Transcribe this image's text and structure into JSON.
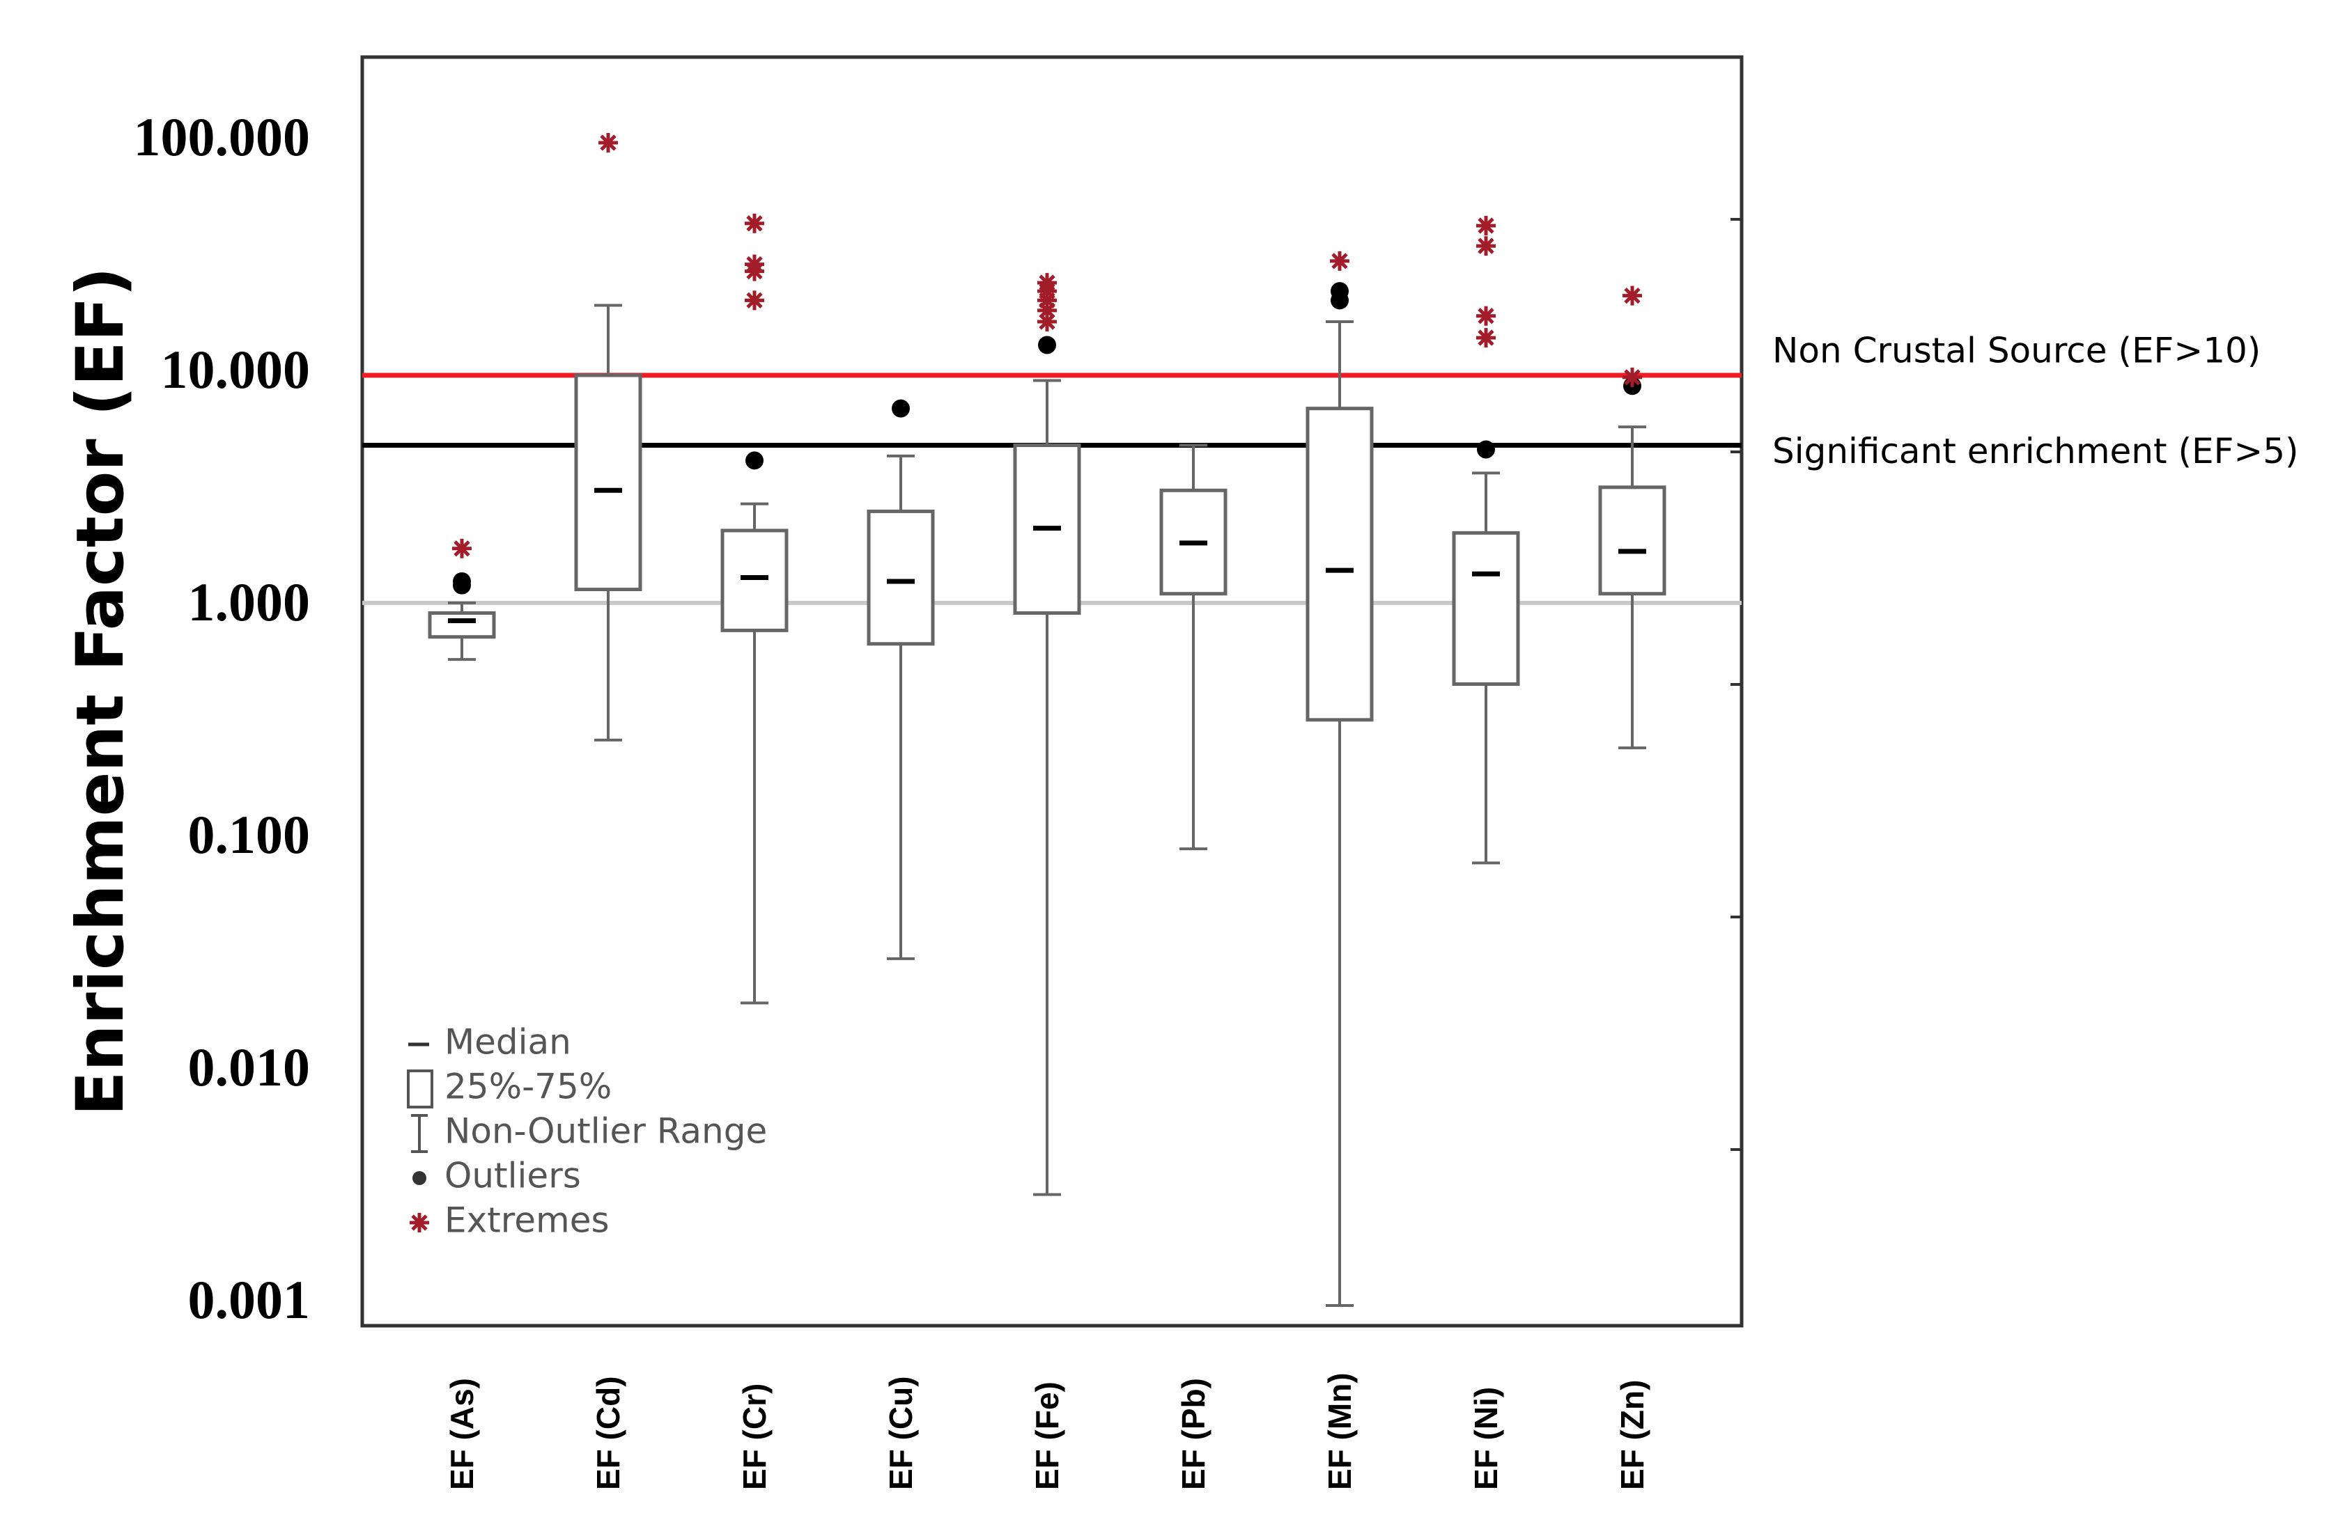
{
  "chart_data": {
    "type": "box",
    "ylabel": "Enrichment Factor (EF)",
    "yscale": "log",
    "ylim": [
      0.0007,
      220
    ],
    "yticks": [
      {
        "value": 100,
        "label": "100.000"
      },
      {
        "value": 10,
        "label": "10.000"
      },
      {
        "value": 1,
        "label": "1.000"
      },
      {
        "value": 0.1,
        "label": "0.100"
      },
      {
        "value": 0.01,
        "label": "0.010"
      },
      {
        "value": 0.001,
        "label": "0.001"
      }
    ],
    "reference_lines": [
      {
        "value": 10,
        "label": "Non Crustal Source (EF>10)",
        "color": "#ee1c24"
      },
      {
        "value": 5,
        "label": "Significant enrichment (EF>5)",
        "color": "#000000"
      },
      {
        "value": 1.05,
        "label": "",
        "color": "#c8c8c8"
      }
    ],
    "categories": [
      "EF (As)",
      "EF (Cd)",
      "EF (Cr)",
      "EF (Cu)",
      "EF (Fe)",
      "EF (Pb)",
      "EF (Mn)",
      "EF (Ni)",
      "EF (Zn)"
    ],
    "boxes": [
      {
        "name": "EF (As)",
        "whisker_low": 0.6,
        "q1": 0.75,
        "median": 0.88,
        "q3": 0.95,
        "whisker_high": 1.05,
        "outliers": [
          1.3,
          1.25
        ],
        "extremes": [
          1.8
        ]
      },
      {
        "name": "EF (Cd)",
        "whisker_low": 0.27,
        "q1": 1.2,
        "median": 3.2,
        "q3": 10.0,
        "whisker_high": 20.0,
        "outliers": [],
        "extremes": [
          100
        ]
      },
      {
        "name": "EF (Cr)",
        "whisker_low": 0.02,
        "q1": 0.8,
        "median": 1.35,
        "q3": 2.15,
        "whisker_high": 2.8,
        "outliers": [
          4.3
        ],
        "extremes": [
          45,
          30,
          28,
          21
        ]
      },
      {
        "name": "EF (Cu)",
        "whisker_low": 0.031,
        "q1": 0.7,
        "median": 1.3,
        "q3": 2.6,
        "whisker_high": 4.5,
        "outliers": [
          7.2
        ],
        "extremes": []
      },
      {
        "name": "EF (Fe)",
        "whisker_low": 0.003,
        "q1": 0.95,
        "median": 2.2,
        "q3": 5.0,
        "whisker_high": 9.5,
        "outliers": [
          13.5
        ],
        "extremes": [
          25,
          23,
          21,
          19,
          17
        ]
      },
      {
        "name": "EF (Pb)",
        "whisker_low": 0.092,
        "q1": 1.15,
        "median": 1.9,
        "q3": 3.2,
        "whisker_high": 5.0,
        "outliers": [],
        "extremes": []
      },
      {
        "name": "EF (Mn)",
        "whisker_low": 0.001,
        "q1": 0.33,
        "median": 1.45,
        "q3": 7.2,
        "whisker_high": 17.0,
        "outliers": [
          23,
          21
        ],
        "extremes": [
          31
        ]
      },
      {
        "name": "EF (Ni)",
        "whisker_low": 0.08,
        "q1": 0.47,
        "median": 1.4,
        "q3": 2.1,
        "whisker_high": 3.8,
        "outliers": [
          4.8
        ],
        "extremes": [
          44,
          36,
          18,
          14.5
        ]
      },
      {
        "name": "EF (Zn)",
        "whisker_low": 0.25,
        "q1": 1.15,
        "median": 1.75,
        "q3": 3.3,
        "whisker_high": 6.0,
        "outliers": [
          9.0
        ],
        "extremes": [
          22,
          9.8
        ]
      }
    ],
    "legend": {
      "position": "bottom-left",
      "items": [
        {
          "symbol": "median",
          "label": "Median"
        },
        {
          "symbol": "box",
          "label": "25%-75%"
        },
        {
          "symbol": "whisker",
          "label": "Non-Outlier Range"
        },
        {
          "symbol": "outlier",
          "label": "Outliers"
        },
        {
          "symbol": "extreme",
          "label": "Extremes"
        }
      ]
    },
    "colors": {
      "box": "#666666",
      "median": "#000000",
      "outlier": "#000000",
      "extreme": "#a31c2a",
      "axis": "#333333"
    }
  }
}
